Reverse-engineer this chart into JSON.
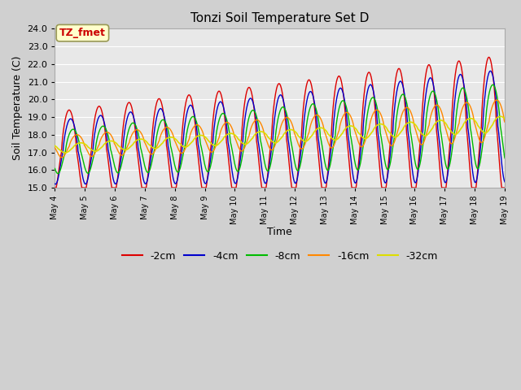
{
  "title": "Tonzi Soil Temperature Set D",
  "xlabel": "Time",
  "ylabel": "Soil Temperature (C)",
  "ylim": [
    15.0,
    24.0
  ],
  "yticks": [
    15.0,
    16.0,
    17.0,
    18.0,
    19.0,
    20.0,
    21.0,
    22.0,
    23.0,
    24.0
  ],
  "annotation_label": "TZ_fmet",
  "annotation_color": "#cc0000",
  "annotation_bg": "#ffffcc",
  "annotation_border": "#999955",
  "series_colors": {
    "-2cm": "#dd0000",
    "-4cm": "#0000cc",
    "-8cm": "#00bb00",
    "-16cm": "#ff8800",
    "-32cm": "#dddd00"
  },
  "legend_labels": [
    "-2cm",
    "-4cm",
    "-8cm",
    "-16cm",
    "-32cm"
  ],
  "fig_bg": "#d0d0d0",
  "axes_bg": "#e8e8e8",
  "grid_color": "#ffffff",
  "n_days": 15,
  "start_day": 4,
  "samples_per_day": 96
}
